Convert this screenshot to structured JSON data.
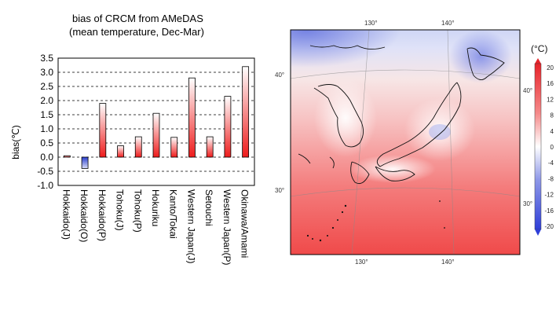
{
  "bar_chart": {
    "title_line1": "bias of CRCM from AMeDAS",
    "title_line2": "(mean temperature, Dec-Mar)",
    "ylabel": "bias(℃)"
  },
  "map": {
    "lon_labels": [
      "130°",
      "140°"
    ],
    "lat_labels": [
      "40°",
      "30°"
    ],
    "colorbar_unit": "(°C)",
    "colorbar_ticks": [
      "20",
      "16",
      "12",
      "8",
      "4",
      "0",
      "-4",
      "-8",
      "-12",
      "-16",
      "-20"
    ],
    "colors": {
      "warm": "#f04848",
      "cold": "#4f5fd8",
      "neutral": "#ffffff"
    }
  },
  "chart_data": [
    {
      "type": "bar",
      "title": "bias of CRCM from AMeDAS",
      "subtitle": "(mean temperature, Dec-Mar)",
      "xlabel": "",
      "ylabel": "bias(℃)",
      "ylim": [
        -1.0,
        3.5
      ],
      "yticks": [
        "3.5",
        "3.0",
        "2.5",
        "2.0",
        "1.5",
        "1.0",
        "0.5",
        "0.0",
        "-0.5",
        "-1.0"
      ],
      "ytick_values": [
        3.5,
        3.0,
        2.5,
        2.0,
        1.5,
        1.0,
        0.5,
        0.0,
        -0.5,
        -1.0
      ],
      "grid": "horizontal-dashed",
      "categories": [
        "Hokkaido(J)",
        "Hokkaido(O)",
        "Hokkaido(P)",
        "Tohoku(J)",
        "Tohoku(P)",
        "Hokuriku",
        "Kanto/Tokai",
        "Western Japan(J)",
        "Setouchi",
        "Western Japan(P)",
        "Okinawa/Amami"
      ],
      "values": [
        0.05,
        -0.4,
        1.9,
        0.4,
        0.72,
        1.55,
        0.7,
        2.8,
        0.72,
        2.15,
        3.2
      ],
      "colors": {
        "positive": "#ee1c1c",
        "negative": "#2b3fcf"
      }
    },
    {
      "type": "heatmap",
      "title": "",
      "colorbar_unit": "(°C)",
      "colorbar_range": [
        -20,
        20
      ],
      "x_ticks": [
        "130°",
        "140°"
      ],
      "y_ticks": [
        "40°",
        "30°"
      ]
    }
  ]
}
